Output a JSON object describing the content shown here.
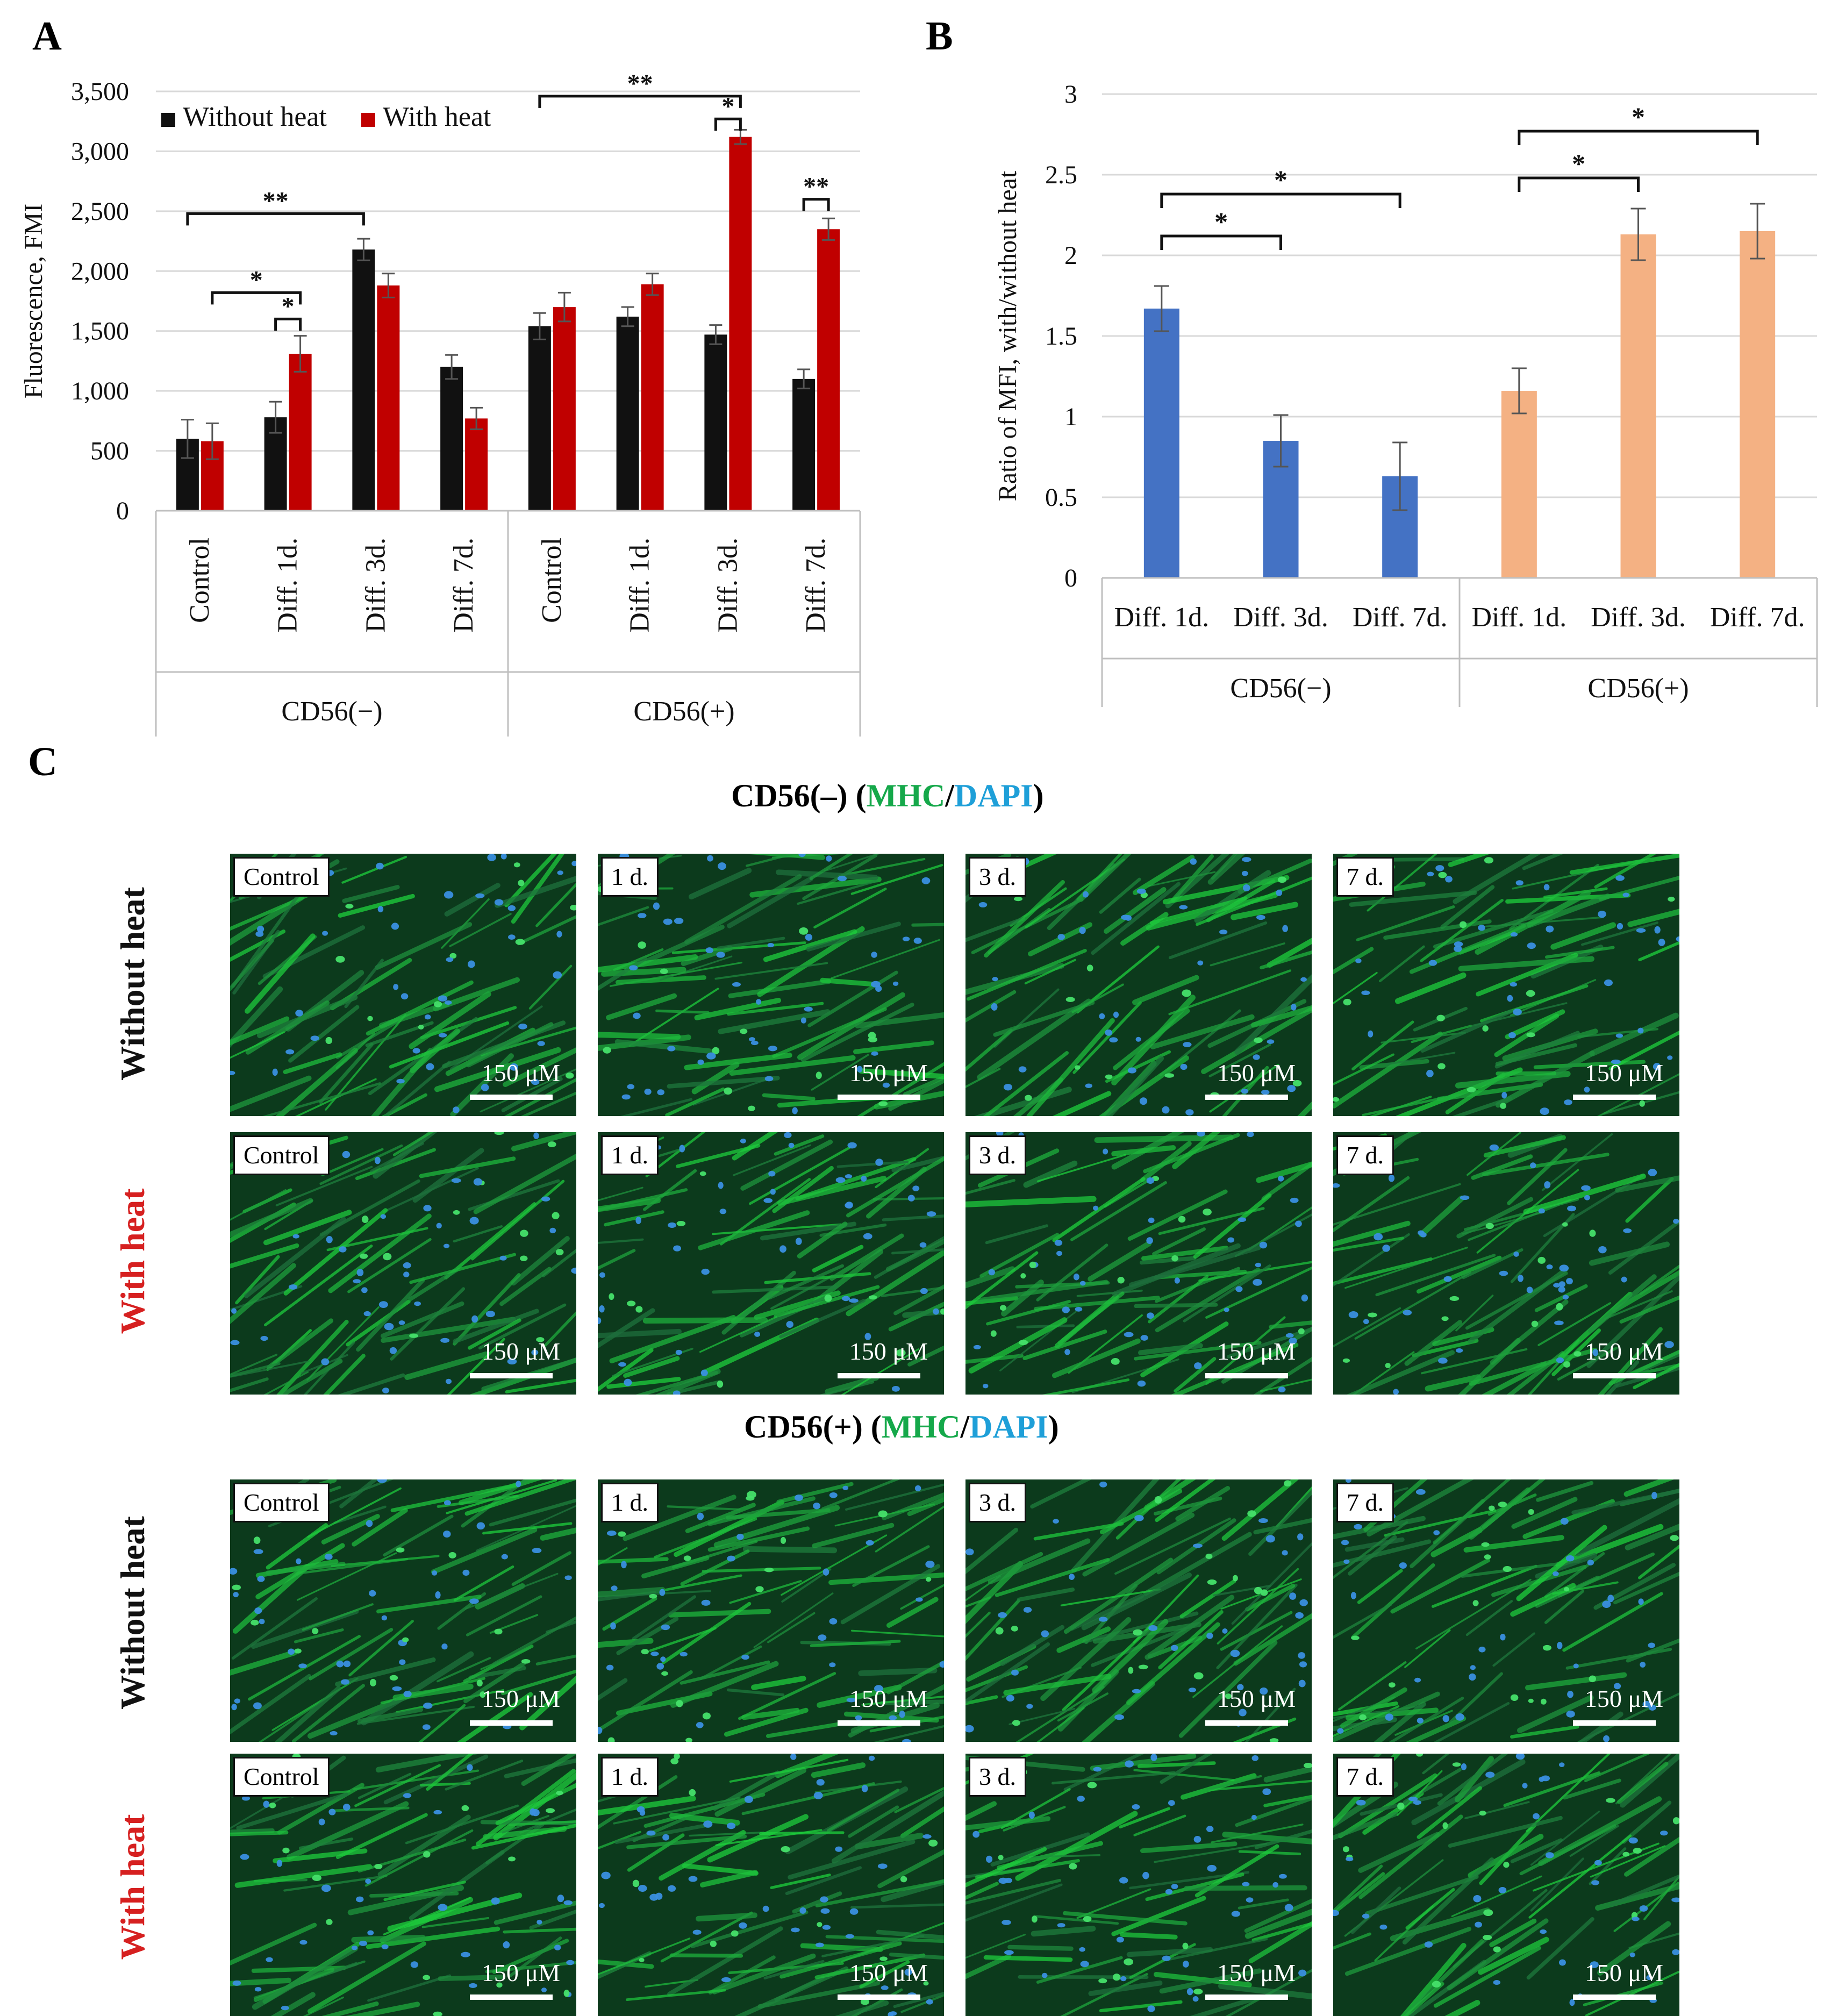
{
  "panels": {
    "a": "A",
    "b": "B",
    "c": "C"
  },
  "chart_data": [
    {
      "id": "A",
      "type": "bar",
      "title": "",
      "ylabel": "Fluorescence, FMI",
      "ylim": [
        0,
        3500
      ],
      "yticks": [
        0,
        500,
        1000,
        1500,
        2000,
        2500,
        3000,
        3500
      ],
      "ytick_labels": [
        "0",
        "500",
        "1,000",
        "1,500",
        "2,000",
        "2,500",
        "3,000",
        "3,500"
      ],
      "grid": true,
      "legend": "top-left",
      "categories": [
        "Control",
        "Diff. 1d.",
        "Diff. 3d.",
        "Diff. 7d.",
        "Control",
        "Diff. 1d.",
        "Diff. 3d.",
        "Diff. 7d."
      ],
      "groups": [
        {
          "label": "CD56(−)",
          "count": 4
        },
        {
          "label": "CD56(+)",
          "count": 4
        }
      ],
      "series": [
        {
          "name": "Without heat",
          "color": "#111111",
          "values": [
            600,
            780,
            2180,
            1200,
            1540,
            1620,
            1470,
            1100
          ],
          "errors": [
            160,
            130,
            90,
            100,
            110,
            80,
            80,
            80
          ]
        },
        {
          "name": "With heat",
          "color": "#c00000",
          "values": [
            580,
            1310,
            1880,
            770,
            1700,
            1890,
            3120,
            2350
          ],
          "errors": [
            150,
            150,
            100,
            90,
            120,
            90,
            60,
            90
          ]
        }
      ],
      "brackets": [
        {
          "from": [
            0,
            0
          ],
          "to": [
            2,
            0
          ],
          "y": 2480,
          "label": "**"
        },
        {
          "from": [
            0,
            1
          ],
          "to": [
            1,
            1
          ],
          "y": 1820,
          "label": "*"
        },
        {
          "from": [
            1,
            0
          ],
          "to": [
            1,
            1
          ],
          "y": 1600,
          "label": "*"
        },
        {
          "from": [
            4,
            0
          ],
          "to": [
            6,
            1
          ],
          "y": 3460,
          "label": "**"
        },
        {
          "from": [
            6,
            0
          ],
          "to": [
            6,
            1
          ],
          "y": 3270,
          "label": "*"
        },
        {
          "from": [
            7,
            0
          ],
          "to": [
            7,
            1
          ],
          "y": 2600,
          "label": "**"
        }
      ]
    },
    {
      "id": "B",
      "type": "bar",
      "title": "",
      "ylabel": "Ratio of MFI, with/without heat",
      "ylim": [
        0,
        3
      ],
      "yticks": [
        0,
        0.5,
        1,
        1.5,
        2,
        2.5,
        3
      ],
      "ytick_labels": [
        "0",
        "0.5",
        "1",
        "1.5",
        "2",
        "2.5",
        "3"
      ],
      "grid": true,
      "categories": [
        "Diff. 1d.",
        "Diff. 3d.",
        "Diff. 7d.",
        "Diff. 1d.",
        "Diff. 3d.",
        "Diff. 7d."
      ],
      "groups": [
        {
          "label": "CD56(−)",
          "count": 3
        },
        {
          "label": "CD56(+)",
          "count": 3
        }
      ],
      "values": [
        1.67,
        0.85,
        0.63,
        1.16,
        2.13,
        2.15
      ],
      "errors": [
        0.14,
        0.16,
        0.21,
        0.14,
        0.16,
        0.17
      ],
      "colors": [
        "#4472c4",
        "#4472c4",
        "#4472c4",
        "#f4b183",
        "#f4b183",
        "#f4b183"
      ],
      "brackets": [
        {
          "from": 0,
          "to": 1,
          "y": 2.12,
          "label": "*"
        },
        {
          "from": 0,
          "to": 2,
          "y": 2.38,
          "label": "*"
        },
        {
          "from": 3,
          "to": 4,
          "y": 2.48,
          "label": "*"
        },
        {
          "from": 3,
          "to": 5,
          "y": 2.77,
          "label": "*"
        }
      ]
    }
  ],
  "panel_c": {
    "sections": [
      {
        "title_prefix": "CD56(–) (",
        "marker1": "MHC",
        "sep": "/",
        "marker2": "DAPI",
        "suffix": ")",
        "rows": [
          {
            "label": "Without heat",
            "tags": [
              "Control",
              "1 d.",
              "3 d.",
              "7 d."
            ]
          },
          {
            "label": "With heat",
            "tags": [
              "Control",
              "1 d.",
              "3 d.",
              "7 d."
            ]
          }
        ]
      },
      {
        "title_prefix": "CD56(+) (",
        "marker1": "MHC",
        "sep": "/",
        "marker2": "DAPI",
        "suffix": ")",
        "rows": [
          {
            "label": "Without heat",
            "tags": [
              "Control",
              "1 d.",
              "3 d.",
              "7 d."
            ]
          },
          {
            "label": "With heat",
            "tags": [
              "Control",
              "1 d.",
              "3 d.",
              "7 d."
            ]
          }
        ]
      }
    ],
    "scale_label": "150 μM"
  }
}
